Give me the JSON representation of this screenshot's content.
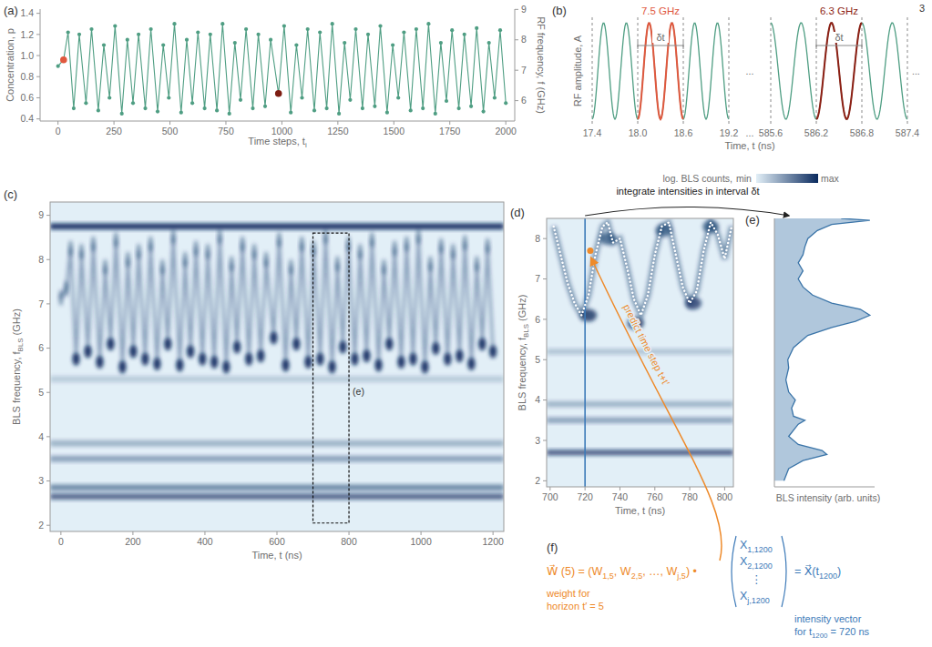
{
  "page_number": "3",
  "chart_data": [
    {
      "label": "(a)",
      "type": "line",
      "xlabel": [
        "Time steps, t",
        {
          "sub": "i"
        }
      ],
      "ylabel": "Concentration, p",
      "y2label": "RF frequency, f (GHz)",
      "xlim": [
        -80,
        2040
      ],
      "xticks": [
        0,
        250,
        500,
        750,
        1000,
        1250,
        1500,
        1750,
        2000
      ],
      "ylim": [
        0.38,
        1.44
      ],
      "yticks": [
        0.4,
        0.6,
        0.8,
        {
          "value": 1,
          "label": "1.0"
        },
        1.2,
        1.4
      ],
      "y2lim": [
        5.33,
        9.01
      ],
      "y2ticks": [
        6,
        7,
        8,
        9
      ],
      "x": [
        0,
        25,
        45,
        70,
        95,
        125,
        150,
        180,
        205,
        230,
        255,
        285,
        310,
        335,
        360,
        390,
        415,
        445,
        470,
        495,
        520,
        550,
        575,
        600,
        625,
        655,
        680,
        710,
        735,
        765,
        790,
        815,
        840,
        870,
        895,
        925,
        950,
        985,
        1010,
        1040,
        1065,
        1090,
        1115,
        1145,
        1170,
        1200,
        1225,
        1255,
        1280,
        1305,
        1330,
        1360,
        1385,
        1415,
        1440,
        1470,
        1495,
        1520,
        1545,
        1575,
        1600,
        1630,
        1655,
        1685,
        1710,
        1735,
        1760,
        1790,
        1815,
        1845,
        1870,
        1900,
        1925,
        1950,
        1975,
        2000
      ],
      "series": [
        {
          "color": "#4f9e83",
          "marker": "circle",
          "line_style": "solid",
          "values": [
            0.9,
            0.96,
            1.22,
            0.5,
            1.2,
            0.55,
            1.25,
            0.48,
            1.1,
            0.6,
            1.28,
            0.45,
            1.15,
            0.55,
            1.2,
            0.5,
            1.25,
            0.47,
            1.1,
            0.6,
            1.3,
            0.46,
            1.15,
            0.55,
            1.22,
            0.5,
            1.2,
            0.48,
            1.3,
            0.45,
            1.12,
            0.58,
            1.25,
            0.5,
            1.2,
            0.52,
            1.15,
            0.64,
            1.28,
            0.46,
            1.1,
            0.6,
            1.25,
            0.48,
            1.22,
            0.5,
            1.3,
            0.45,
            1.12,
            0.58,
            1.25,
            0.5,
            1.2,
            0.52,
            1.28,
            0.46,
            1.1,
            0.6,
            1.22,
            0.48,
            1.25,
            0.5,
            1.3,
            0.45,
            1.12,
            0.57,
            1.24,
            0.5,
            1.2,
            0.52,
            1.26,
            0.47,
            1.12,
            0.6,
            1.24,
            0.55
          ]
        }
      ],
      "highlights": {
        "x": [
          25,
          985
        ],
        "values": [
          0.96,
          0.64
        ],
        "colors": [
          "#e0583e",
          "#7d1d12"
        ]
      }
    },
    {
      "label": "(b)",
      "type": "waveform",
      "color": "#4f9e83",
      "xlabel": "Time, t (ns)",
      "ylabel": "RF amplitude, A",
      "ellipsis": "...",
      "delta_label": "δt",
      "segments": [
        {
          "label": "7.5 GHz",
          "color": "#e0583e",
          "xlim": [
            17.4,
            19.2
          ],
          "ticks": [
            17.4,
            {
              "value": 18,
              "label": "18.0"
            },
            18.6,
            19.2
          ],
          "highlight": [
            18,
            18.6
          ]
        },
        {
          "label": "6.3 GHz",
          "color": "#8e1f14",
          "xlim": [
            585.6,
            587.4
          ],
          "ticks": [
            585.6,
            586.2,
            586.8,
            587.4
          ],
          "highlight": [
            586.2,
            586.8
          ]
        }
      ]
    },
    {
      "label": "(c)",
      "type": "heatmap",
      "xlabel": "Time, t (ns)",
      "ylabel": [
        "BLS frequency, f",
        {
          "sub": "BLS"
        },
        " (GHz)"
      ],
      "xlim": [
        -30,
        1230
      ],
      "xticks": [
        0,
        200,
        400,
        600,
        800,
        1000,
        1200
      ],
      "ylim": [
        1.86,
        9.3
      ],
      "yticks": [
        2,
        3,
        4,
        5,
        6,
        7,
        8,
        9
      ],
      "colorbar": {
        "label": "log. BLS counts,",
        "min_label": "min",
        "max_label": "max",
        "colors": [
          "#e2eff7",
          "#0a2a5e"
        ]
      },
      "bands": [
        {
          "f": 8.75,
          "intensity": 1.0
        },
        {
          "f": 2.65,
          "intensity": 0.7
        },
        {
          "f": 2.85,
          "intensity": 0.5
        },
        {
          "f": 3.5,
          "intensity": 0.35
        },
        {
          "f": 3.85,
          "intensity": 0.25
        },
        {
          "f": 5.3,
          "intensity": 0.1
        }
      ],
      "trace": {
        "t": [
          0,
          15,
          27,
          42,
          57,
          75,
          90,
          108,
          123,
          138,
          153,
          171,
          186,
          201,
          216,
          234,
          249,
          267,
          282,
          297,
          312,
          330,
          345,
          360,
          375,
          393,
          408,
          426,
          441,
          459,
          474,
          489,
          504,
          522,
          537,
          555,
          570,
          591,
          606,
          624,
          639,
          654,
          669,
          687,
          702,
          720,
          735,
          753,
          768,
          783,
          798,
          816,
          831,
          849,
          864,
          882,
          897,
          912,
          927,
          945,
          960,
          978,
          993,
          1011,
          1026,
          1041,
          1056,
          1074,
          1089,
          1107,
          1122,
          1140,
          1155,
          1170,
          1185,
          1200
        ],
        "f": [
          7.14,
          7.34,
          8.25,
          5.75,
          8.18,
          5.92,
          8.35,
          5.68,
          7.83,
          6.09,
          8.45,
          5.57,
          8.0,
          5.92,
          8.18,
          5.75,
          8.35,
          5.64,
          7.83,
          6.09,
          8.52,
          5.61,
          8.0,
          5.92,
          8.25,
          5.75,
          8.18,
          5.68,
          8.52,
          5.57,
          7.9,
          6.02,
          8.35,
          5.75,
          8.18,
          5.82,
          8.0,
          6.23,
          8.45,
          5.61,
          7.83,
          6.09,
          8.35,
          5.68,
          8.25,
          5.75,
          8.52,
          5.57,
          7.9,
          6.02,
          8.35,
          5.75,
          8.18,
          5.82,
          8.45,
          5.61,
          7.83,
          6.09,
          8.25,
          5.68,
          8.35,
          5.75,
          8.52,
          5.57,
          7.9,
          5.99,
          8.31,
          5.75,
          8.18,
          5.82,
          8.38,
          5.64,
          7.9,
          6.09,
          8.31,
          5.92
        ]
      },
      "box": {
        "label": "(e)",
        "t": [
          700,
          800
        ],
        "f": [
          2.05,
          8.6
        ]
      }
    },
    {
      "label": "(d)",
      "type": "heatmap",
      "xlabel": "Time, t (ns)",
      "ylabel": [
        "BLS frequency, f",
        {
          "sub": "BLS"
        },
        " (GHz)"
      ],
      "xlim": [
        698,
        805
      ],
      "xticks": [
        700,
        720,
        740,
        760,
        780,
        800
      ],
      "ylim": [
        1.85,
        8.5
      ],
      "yticks": [
        2,
        3,
        4,
        5,
        6,
        7,
        8
      ],
      "bands": [
        {
          "f": 2.7,
          "intensity": 0.75
        },
        {
          "f": 3.5,
          "intensity": 0.35
        },
        {
          "f": 3.9,
          "intensity": 0.25
        },
        {
          "f": 5.2,
          "intensity": 0.15
        }
      ],
      "blobs": {
        "t": [
          722,
          733,
          749,
          765,
          782,
          792
        ],
        "f": [
          6.1,
          8.0,
          5.9,
          8.2,
          6.4,
          8.3
        ],
        "intensity": [
          0.9,
          0.6,
          0.9,
          0.6,
          0.8,
          0.6
        ]
      },
      "trace": {
        "t": [
          702,
          706,
          710,
          714,
          718,
          722,
          726,
          730,
          733,
          736,
          740,
          744,
          748,
          752,
          756,
          760,
          764,
          768,
          772,
          776,
          780,
          784,
          788,
          792,
          796,
          800,
          804
        ],
        "f": [
          8.3,
          7.6,
          6.9,
          6.4,
          6.1,
          6.6,
          7.6,
          8.3,
          8.4,
          7.9,
          8.0,
          7.3,
          6.5,
          6.1,
          6.6,
          7.6,
          8.3,
          8.4,
          7.6,
          6.8,
          6.4,
          6.7,
          7.7,
          8.4,
          8.1,
          7.5,
          8.3
        ]
      },
      "current_t": 720,
      "prediction": {
        "t": 723,
        "f": 7.7
      },
      "integrate_label": "integrate intensities in interval δt",
      "predict_label": "predict time step t+t′"
    },
    {
      "label": "(e)",
      "type": "area",
      "orientation": "horizontal",
      "tick_labels": false,
      "color": "#3a74a8",
      "xlabel": "BLS intensity (arb. units)",
      "xlim": [
        0,
        1.05
      ],
      "ylim": [
        1.85,
        8.5
      ],
      "f": [
        2.0,
        2.3,
        2.5,
        2.65,
        2.75,
        2.9,
        3.1,
        3.4,
        3.5,
        3.6,
        3.8,
        4.0,
        4.2,
        4.5,
        4.8,
        5.0,
        5.3,
        5.6,
        5.8,
        5.95,
        6.1,
        6.25,
        6.4,
        6.6,
        6.8,
        7.0,
        7.2,
        7.4,
        7.6,
        7.8,
        8.0,
        8.2,
        8.35,
        8.45,
        8.5
      ],
      "values": [
        0.1,
        0.15,
        0.3,
        0.55,
        0.5,
        0.25,
        0.15,
        0.25,
        0.32,
        0.2,
        0.18,
        0.22,
        0.15,
        0.12,
        0.15,
        0.14,
        0.2,
        0.35,
        0.6,
        0.85,
        1.0,
        0.9,
        0.6,
        0.4,
        0.3,
        0.25,
        0.3,
        0.25,
        0.3,
        0.32,
        0.35,
        0.45,
        0.6,
        1.0,
        0.7
      ]
    },
    {
      "label": "(f)",
      "type": "equation",
      "lhs": "W⃗ (5) = (",
      "row": [
        {
          "base": "W",
          "sub": "1,5"
        },
        {
          "base": "W",
          "sub": "2,5"
        },
        {
          "base": "…"
        },
        {
          "base": "W",
          "sub": "j,5"
        }
      ],
      "separator": ", ",
      "close": ") •",
      "vector": [
        {
          "base": "X",
          "sub": "1,1200"
        },
        {
          "base": "X",
          "sub": "2,1200"
        },
        {
          "base": "⋮"
        },
        {
          "base": "X",
          "sub": "j,1200"
        }
      ],
      "rhs": [
        "= X⃗(t",
        {
          "sub": "1200"
        },
        ")"
      ],
      "weight_note": [
        "weight for",
        "horizon t′ = 5"
      ],
      "vector_note": [
        "intensity vector",
        [
          "for t",
          {
            "sub": "1200"
          },
          " = 720 ns"
        ]
      ]
    }
  ]
}
